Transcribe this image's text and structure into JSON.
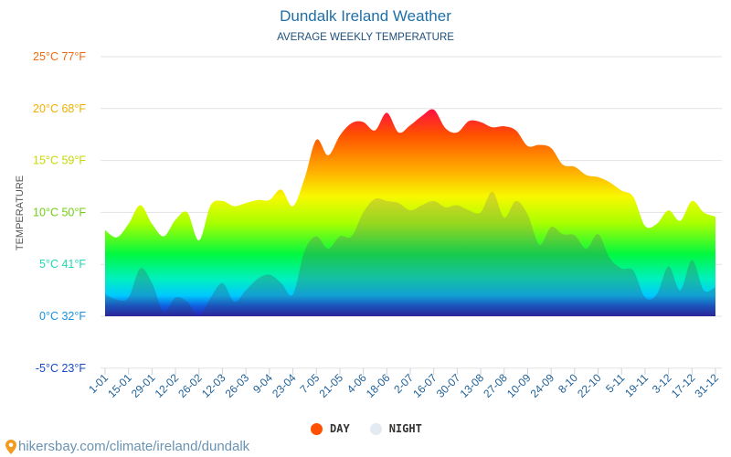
{
  "header": {
    "title": "Dundalk Ireland Weather",
    "subtitle": "AVERAGE WEEKLY TEMPERATURE"
  },
  "chart_data": {
    "type": "area",
    "title": "Dundalk Ireland Weather",
    "subtitle": "AVERAGE WEEKLY TEMPERATURE",
    "ylabel": "TEMPERATURE",
    "ylim": [
      -5,
      25
    ],
    "grid": true,
    "legend_placement": "bottom",
    "y_ticks": [
      {
        "value": 25,
        "label": "25°C 77°F",
        "color": "#f06a10"
      },
      {
        "value": 20,
        "label": "20°C 68°F",
        "color": "#f0b000"
      },
      {
        "value": 15,
        "label": "15°C 59°F",
        "color": "#c8d800"
      },
      {
        "value": 10,
        "label": "10°C 50°F",
        "color": "#70d010"
      },
      {
        "value": 5,
        "label": "5°C 41°F",
        "color": "#20d8b0"
      },
      {
        "value": 0,
        "label": "0°C 32°F",
        "color": "#1890e0"
      },
      {
        "value": -5,
        "label": "-5°C 23°F",
        "color": "#1848c8"
      }
    ],
    "x_tick_labels": [
      "1-01",
      "15-01",
      "29-01",
      "12-02",
      "26-02",
      "12-03",
      "26-03",
      "9-04",
      "23-04",
      "7-05",
      "21-05",
      "4-06",
      "18-06",
      "2-07",
      "16-07",
      "30-07",
      "13-08",
      "27-08",
      "10-09",
      "24-09",
      "8-10",
      "22-10",
      "5-11",
      "19-11",
      "3-12",
      "17-12",
      "31-12"
    ],
    "series": [
      {
        "name": "DAY",
        "color": "#ff4f00",
        "values": [
          8.3,
          7.6,
          8.9,
          10.7,
          8.9,
          7.7,
          9.3,
          10.0,
          7.3,
          10.7,
          11.1,
          10.6,
          10.9,
          11.2,
          11.2,
          12.2,
          10.6,
          13.3,
          17.0,
          15.5,
          17.4,
          18.6,
          18.7,
          17.9,
          19.6,
          17.7,
          18.4,
          19.3,
          19.9,
          18.1,
          17.7,
          18.8,
          18.7,
          18.2,
          18.3,
          17.9,
          16.4,
          16.5,
          16.2,
          14.6,
          14.4,
          13.6,
          13.4,
          12.9,
          12.1,
          11.5,
          8.7,
          8.9,
          10.2,
          9.2,
          11.1,
          10.0,
          9.6
        ]
      },
      {
        "name": "NIGHT",
        "color": "#e3eaf2",
        "values": [
          2.1,
          1.6,
          1.8,
          4.6,
          3.2,
          0.4,
          1.8,
          1.4,
          0.0,
          1.8,
          3.2,
          1.4,
          2.5,
          3.6,
          4.0,
          3.2,
          2.1,
          6.3,
          7.7,
          6.5,
          7.7,
          7.7,
          10.0,
          11.3,
          11.1,
          10.9,
          10.2,
          10.7,
          11.1,
          10.5,
          10.7,
          10.2,
          10.0,
          12.0,
          9.5,
          11.1,
          9.8,
          6.9,
          8.6,
          7.9,
          7.8,
          6.5,
          7.9,
          5.6,
          4.6,
          4.4,
          1.8,
          2.1,
          4.8,
          2.5,
          5.4,
          2.5,
          2.8
        ]
      }
    ]
  },
  "legend": {
    "day": "DAY",
    "night": "NIGHT"
  },
  "footer": {
    "url": "hikersbay.com/climate/ireland/dundalk",
    "icon": "map-pin-icon"
  }
}
